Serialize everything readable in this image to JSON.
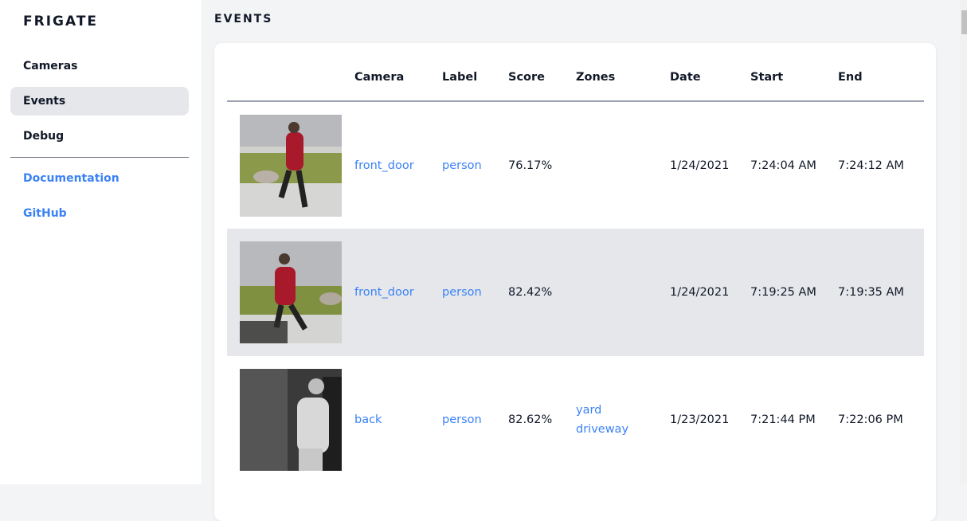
{
  "sidebar": {
    "brand": "FRIGATE",
    "items": [
      {
        "label": "Cameras"
      },
      {
        "label": "Events",
        "active": true
      },
      {
        "label": "Debug"
      }
    ],
    "links": [
      {
        "label": "Documentation"
      },
      {
        "label": "GitHub"
      }
    ]
  },
  "page": {
    "title": "EVENTS"
  },
  "table": {
    "headers": [
      "",
      "Camera",
      "Label",
      "Score",
      "Zones",
      "Date",
      "Start",
      "End"
    ],
    "rows": [
      {
        "camera": "front_door",
        "label": "person",
        "score": "76.17%",
        "zones": [
          "",
          ""
        ],
        "date": "1/24/2021",
        "start": "7:24:04 AM",
        "end": "7:24:12 AM",
        "thumbnail": "person walking dog, color"
      },
      {
        "camera": "front_door",
        "label": "person",
        "score": "82.42%",
        "zones": [
          "",
          ""
        ],
        "date": "1/24/2021",
        "start": "7:19:25 AM",
        "end": "7:19:35 AM",
        "thumbnail": "person walking dog, color"
      },
      {
        "camera": "back",
        "label": "person",
        "score": "82.62%",
        "zones": [
          "yard",
          "driveway"
        ],
        "date": "1/23/2021",
        "start": "7:21:44 PM",
        "end": "7:22:06 PM",
        "thumbnail": "person at night, grayscale"
      }
    ]
  },
  "colors": {
    "accent": "#3b82f6",
    "active_bg": "#e5e7eb",
    "page_bg": "#f3f4f6"
  }
}
